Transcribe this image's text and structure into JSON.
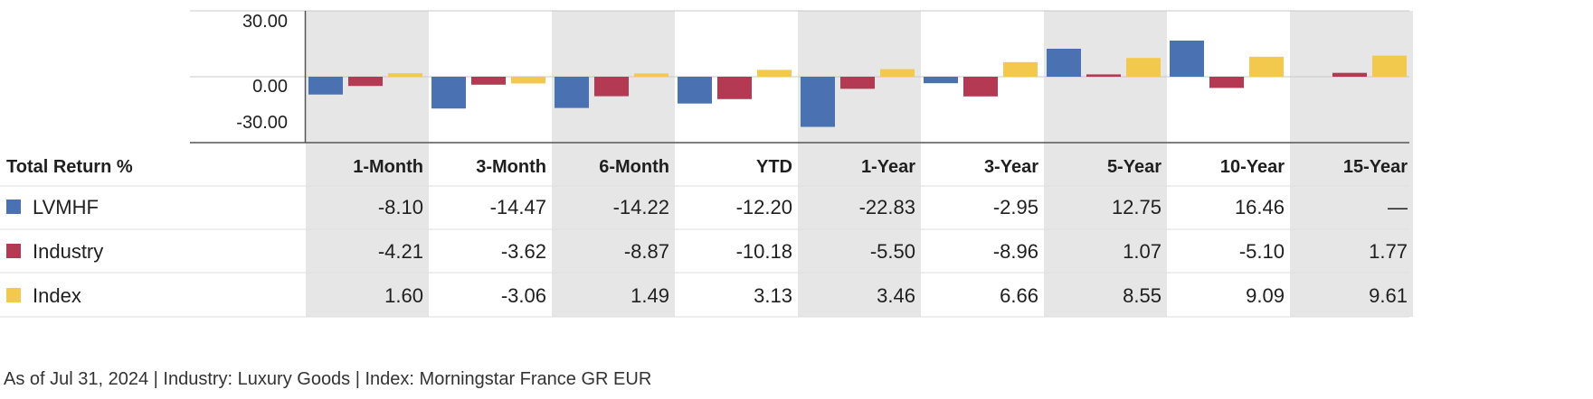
{
  "chart_data": {
    "type": "bar",
    "title": "",
    "xlabel": "",
    "ylabel": "",
    "ylim": [
      -30,
      30
    ],
    "yticks": [
      "30.00",
      "0.00",
      "-30.00"
    ],
    "grid": false,
    "legend": "table-left",
    "categories": [
      "1-Month",
      "3-Month",
      "6-Month",
      "YTD",
      "1-Year",
      "3-Year",
      "5-Year",
      "10-Year",
      "15-Year"
    ],
    "series": [
      {
        "name": "LVMHF",
        "color": "#4a72b2",
        "values": [
          -8.1,
          -14.47,
          -14.22,
          -12.2,
          -22.83,
          -2.95,
          12.75,
          16.46,
          null
        ],
        "labels": [
          "-8.10",
          "-14.47",
          "-14.22",
          "-12.20",
          "-22.83",
          "-2.95",
          "12.75",
          "16.46",
          "—"
        ]
      },
      {
        "name": "Industry",
        "color": "#b33a52",
        "values": [
          -4.21,
          -3.62,
          -8.87,
          -10.18,
          -5.5,
          -8.96,
          1.07,
          -5.1,
          1.77
        ],
        "labels": [
          "-4.21",
          "-3.62",
          "-8.87",
          "-10.18",
          "-5.50",
          "-8.96",
          "1.07",
          "-5.10",
          "1.77"
        ]
      },
      {
        "name": "Index",
        "color": "#f2c94c",
        "values": [
          1.6,
          -3.06,
          1.49,
          3.13,
          3.46,
          6.66,
          8.55,
          9.09,
          9.61
        ],
        "labels": [
          "1.60",
          "-3.06",
          "1.49",
          "3.13",
          "3.46",
          "6.66",
          "8.55",
          "9.09",
          "9.61"
        ]
      }
    ]
  },
  "table": {
    "header": "Total Return %"
  },
  "footnote": "As of Jul 31, 2024 | Industry: Luxury Goods | Index: Morningstar France GR EUR",
  "colors": {
    "band": "#e6e6e6",
    "grid": "#c8c8c8",
    "row_divider": "#dddddd",
    "axis": "#555555"
  }
}
